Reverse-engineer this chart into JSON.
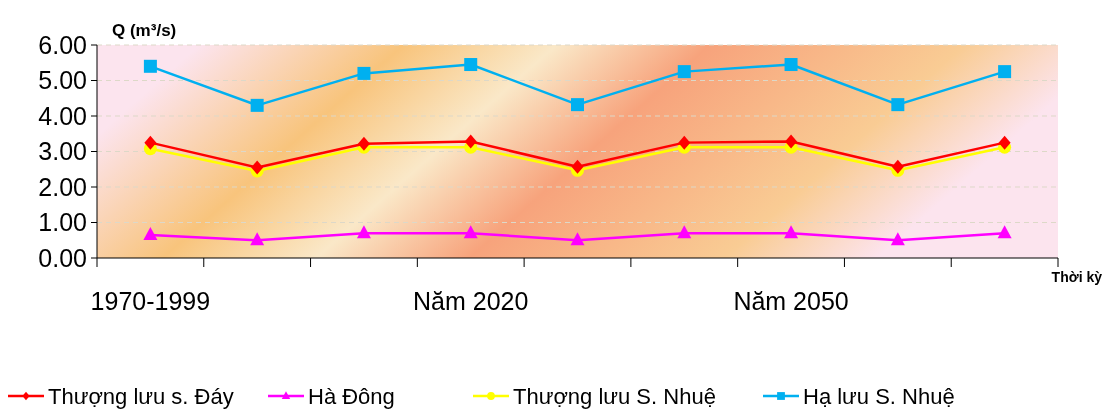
{
  "chart_data": {
    "type": "line",
    "ylabel": "Q (m³/s)",
    "xlabel": "Thời kỳ",
    "categories": [
      "1970-1999",
      null,
      null,
      "Năm 2020",
      null,
      null,
      "Năm 2050",
      null,
      null
    ],
    "ylim": [
      0,
      6
    ],
    "yticks": [
      {
        "value": 0,
        "label": "0.00"
      },
      {
        "value": 1,
        "label": "1.00"
      },
      {
        "value": 2,
        "label": "2.00"
      },
      {
        "value": 3,
        "label": "3.00"
      },
      {
        "value": 4,
        "label": "4.00"
      },
      {
        "value": 5,
        "label": "5.00"
      },
      {
        "value": 6,
        "label": "6.00"
      }
    ],
    "grid": "y",
    "legend": "bottom",
    "series": [
      {
        "name": "Thượng lưu s. Đáy",
        "color": "#ff0000",
        "marker": "diamond",
        "values": [
          3.25,
          2.55,
          3.22,
          3.28,
          2.57,
          3.25,
          3.28,
          2.57,
          3.25
        ]
      },
      {
        "name": "Hà Đông",
        "color": "#ff00ff",
        "marker": "triangle",
        "values": [
          0.65,
          0.5,
          0.7,
          0.7,
          0.5,
          0.7,
          0.7,
          0.5,
          0.7
        ]
      },
      {
        "name": "Thượng lưu S. Nhuệ",
        "color": "#ffff00",
        "marker": "circle",
        "values": [
          3.08,
          2.45,
          3.12,
          3.12,
          2.47,
          3.12,
          3.12,
          2.47,
          3.12
        ]
      },
      {
        "name": "Hạ lưu S. Nhuệ",
        "color": "#00b0f0",
        "marker": "square",
        "values": [
          5.4,
          4.3,
          5.2,
          5.45,
          4.32,
          5.25,
          5.45,
          4.32,
          5.25
        ]
      }
    ]
  }
}
